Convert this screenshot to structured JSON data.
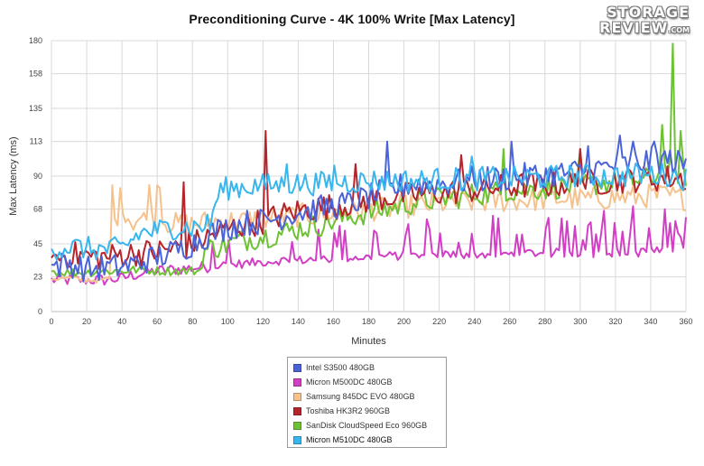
{
  "title": "Preconditioning Curve - 4K 100% Write [Max Latency]",
  "logo": {
    "line1": "STORAGE",
    "line2": "REVIEW",
    "suffix": ".COM"
  },
  "chart_data": {
    "type": "line",
    "title": "Preconditioning Curve - 4K 100% Write [Max Latency]",
    "xlabel": "Minutes",
    "ylabel": "Max Latency (ms)",
    "xlim": [
      0,
      360
    ],
    "ylim": [
      0,
      180
    ],
    "x_ticks": [
      0,
      20,
      40,
      60,
      80,
      100,
      120,
      140,
      160,
      180,
      200,
      220,
      240,
      260,
      280,
      300,
      320,
      340,
      360
    ],
    "y_ticks": [
      0,
      23,
      45,
      68,
      90,
      113,
      135,
      158,
      180
    ],
    "grid": true,
    "legend_position": "bottom",
    "series": [
      {
        "name": "Intel S3500 480GB",
        "color": "#4a63d8",
        "x": [
          0,
          10,
          20,
          30,
          40,
          45,
          50,
          60,
          70,
          80,
          90,
          100,
          110,
          120,
          130,
          140,
          150,
          160,
          170,
          180,
          190,
          200,
          210,
          220,
          230,
          240,
          250,
          260,
          270,
          280,
          290,
          300,
          310,
          320,
          330,
          340,
          350,
          360
        ],
        "y": [
          30,
          32,
          28,
          29,
          30,
          31,
          33,
          36,
          40,
          45,
          52,
          56,
          59,
          60,
          63,
          66,
          68,
          70,
          72,
          76,
          80,
          84,
          85,
          85,
          86,
          88,
          88,
          89,
          90,
          91,
          92,
          93,
          95,
          97,
          98,
          100,
          101,
          97
        ],
        "spikes": [
          [
            191,
            113
          ],
          [
            261,
            113
          ],
          [
            305,
            110
          ],
          [
            322,
            117
          ],
          [
            330,
            113
          ],
          [
            342,
            113
          ]
        ]
      },
      {
        "name": "Micron M500DC 480GB",
        "color": "#d23fc5",
        "x": [
          0,
          10,
          20,
          30,
          40,
          45,
          50,
          60,
          70,
          80,
          90,
          100,
          110,
          120,
          130,
          140,
          150,
          160,
          170,
          180,
          190,
          200,
          210,
          220,
          230,
          240,
          250,
          260,
          270,
          280,
          290,
          300,
          310,
          320,
          330,
          340,
          350,
          360
        ],
        "y": [
          21,
          21,
          21,
          21,
          22,
          24,
          25,
          27,
          28,
          29,
          30,
          31,
          32,
          33,
          34,
          34,
          35,
          35,
          36,
          36,
          37,
          37,
          37,
          38,
          38,
          38,
          38,
          38,
          39,
          39,
          39,
          39,
          39,
          39,
          39,
          40,
          40,
          40
        ],
        "spikes": [
          [
            253,
            62
          ],
          [
            289,
            62
          ],
          [
            313,
            67
          ],
          [
            330,
            70
          ],
          [
            348,
            68
          ]
        ]
      },
      {
        "name": "Samsung 845DC EVO 480GB",
        "color": "#f4c28d",
        "x": [
          0,
          10,
          20,
          30,
          34,
          36,
          40,
          45,
          50,
          55,
          60,
          70,
          80,
          90,
          100,
          110,
          120,
          130,
          140,
          150,
          160,
          170,
          180,
          190,
          200,
          210,
          220,
          230,
          240,
          250,
          260,
          270,
          280,
          290,
          300,
          310,
          320,
          330,
          340,
          350,
          360
        ],
        "y": [
          22,
          22,
          21,
          21,
          22,
          60,
          72,
          60,
          62,
          60,
          62,
          58,
          58,
          60,
          60,
          60,
          62,
          62,
          64,
          64,
          66,
          66,
          68,
          68,
          70,
          70,
          72,
          72,
          73,
          73,
          74,
          74,
          75,
          75,
          75,
          75,
          76,
          76,
          77,
          77,
          75
        ],
        "spikes": [
          [
            35,
            84
          ],
          [
            39,
            82
          ],
          [
            56,
            84
          ],
          [
            60,
            84
          ],
          [
            62,
            82
          ]
        ]
      },
      {
        "name": "Toshiba HK3R2 960GB",
        "color": "#b5242b",
        "x": [
          0,
          10,
          20,
          30,
          40,
          50,
          60,
          70,
          80,
          90,
          100,
          110,
          120,
          130,
          140,
          150,
          160,
          170,
          180,
          190,
          200,
          210,
          220,
          230,
          240,
          250,
          260,
          270,
          280,
          290,
          300,
          310,
          320,
          330,
          340,
          350,
          360
        ],
        "y": [
          35,
          38,
          37,
          36,
          38,
          39,
          40,
          42,
          45,
          50,
          55,
          58,
          60,
          64,
          67,
          69,
          70,
          72,
          74,
          76,
          77,
          78,
          79,
          80,
          81,
          82,
          83,
          84,
          84,
          85,
          86,
          86,
          87,
          88,
          88,
          89,
          88
        ],
        "spikes": [
          [
            75,
            86
          ],
          [
            121,
            120
          ],
          [
            172,
            98
          ],
          [
            232,
            104
          ],
          [
            300,
            108
          ]
        ]
      },
      {
        "name": "SanDisk CloudSpeed Eco 960GB",
        "color": "#6cc232",
        "x": [
          0,
          10,
          20,
          30,
          40,
          50,
          60,
          70,
          80,
          84,
          86,
          90,
          100,
          110,
          120,
          130,
          140,
          150,
          160,
          170,
          180,
          190,
          200,
          210,
          220,
          230,
          240,
          250,
          260,
          270,
          280,
          290,
          300,
          310,
          320,
          330,
          340,
          350,
          360
        ],
        "y": [
          27,
          26,
          26,
          27,
          27,
          28,
          27,
          27,
          27,
          27,
          40,
          42,
          45,
          48,
          50,
          52,
          55,
          57,
          60,
          63,
          66,
          68,
          71,
          73,
          75,
          76,
          78,
          79,
          80,
          81,
          82,
          83,
          84,
          85,
          86,
          87,
          88,
          95,
          90
        ],
        "spikes": [
          [
            256,
            108
          ],
          [
            300,
            108
          ],
          [
            346,
            124
          ],
          [
            352,
            178
          ],
          [
            357,
            120
          ]
        ]
      },
      {
        "name": "Micron M510DC 480GB",
        "color": "#38b6ee",
        "x": [
          0,
          10,
          20,
          30,
          40,
          50,
          60,
          70,
          80,
          90,
          95,
          100,
          110,
          120,
          130,
          140,
          150,
          160,
          170,
          180,
          190,
          200,
          210,
          220,
          230,
          240,
          250,
          260,
          270,
          280,
          290,
          300,
          310,
          320,
          330,
          340,
          350,
          360
        ],
        "y": [
          42,
          43,
          42,
          41,
          42,
          52,
          54,
          56,
          56,
          58,
          80,
          82,
          83,
          84,
          84,
          85,
          85,
          86,
          86,
          87,
          87,
          87,
          87,
          88,
          88,
          88,
          89,
          89,
          89,
          89,
          90,
          90,
          90,
          90,
          91,
          91,
          91,
          88
        ],
        "spikes": [
          [
            133,
            98
          ],
          [
            160,
            97
          ],
          [
            238,
            103
          ]
        ]
      }
    ]
  }
}
